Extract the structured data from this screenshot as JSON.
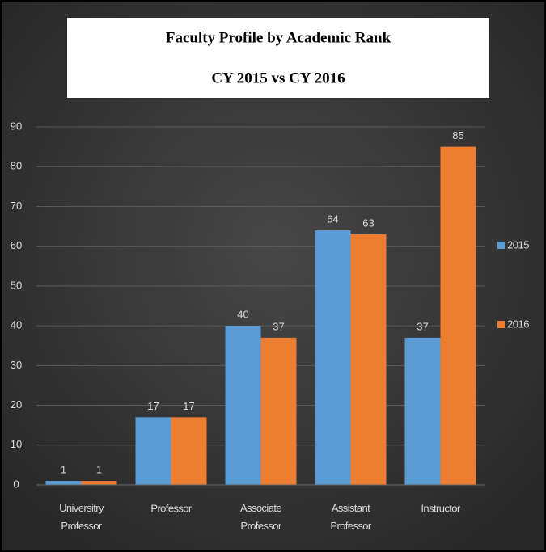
{
  "chart_data": {
    "type": "bar",
    "title": "Faculty Profile by Academic Rank",
    "subtitle": "CY 2015 vs CY 2016",
    "categories": [
      "Universitry Professor",
      "Professor",
      "Associate Professor",
      "Assistant Professor",
      "Instructor"
    ],
    "series": [
      {
        "name": "2015",
        "color": "#5b9bd5",
        "values": [
          1,
          17,
          40,
          64,
          37
        ]
      },
      {
        "name": "2016",
        "color": "#ed7d31",
        "values": [
          1,
          17,
          37,
          63,
          85
        ]
      }
    ],
    "ylim": [
      0,
      90
    ],
    "yticks": [
      0,
      10,
      20,
      30,
      40,
      50,
      60,
      70,
      80,
      90
    ],
    "grid": true,
    "legend": "right"
  }
}
